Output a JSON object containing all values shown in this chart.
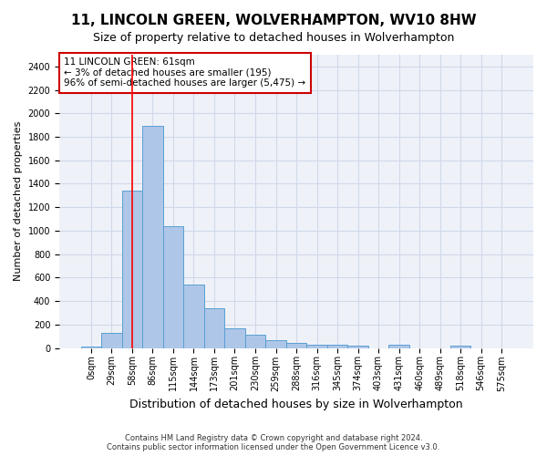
{
  "title": "11, LINCOLN GREEN, WOLVERHAMPTON, WV10 8HW",
  "subtitle": "Size of property relative to detached houses in Wolverhampton",
  "xlabel": "Distribution of detached houses by size in Wolverhampton",
  "ylabel": "Number of detached properties",
  "bin_labels": [
    "0sqm",
    "29sqm",
    "58sqm",
    "86sqm",
    "115sqm",
    "144sqm",
    "173sqm",
    "201sqm",
    "230sqm",
    "259sqm",
    "288sqm",
    "316sqm",
    "345sqm",
    "374sqm",
    "403sqm",
    "431sqm",
    "460sqm",
    "489sqm",
    "518sqm",
    "546sqm",
    "575sqm"
  ],
  "bar_values": [
    15,
    130,
    1340,
    1890,
    1040,
    540,
    340,
    165,
    110,
    65,
    40,
    30,
    25,
    20,
    0,
    25,
    0,
    0,
    20,
    0,
    0
  ],
  "bar_color": "#aec6e8",
  "bar_edge_color": "#5a9fd4",
  "ylim": [
    0,
    2500
  ],
  "yticks": [
    0,
    200,
    400,
    600,
    800,
    1000,
    1200,
    1400,
    1600,
    1800,
    2000,
    2200,
    2400
  ],
  "red_line_x": 2.0,
  "annotation_text": "11 LINCOLN GREEN: 61sqm\n← 3% of detached houses are smaller (195)\n96% of semi-detached houses are larger (5,475) →",
  "annotation_box_color": "#ffffff",
  "annotation_box_edge_color": "#cc0000",
  "background_color": "#ffffff",
  "grid_color": "#d0d8e8",
  "title_fontsize": 11,
  "subtitle_fontsize": 9,
  "xlabel_fontsize": 9,
  "ylabel_fontsize": 8,
  "tick_fontsize": 7,
  "annotation_fontsize": 7.5,
  "footer_text": "Contains HM Land Registry data © Crown copyright and database right 2024.\nContains public sector information licensed under the Open Government Licence v3.0."
}
